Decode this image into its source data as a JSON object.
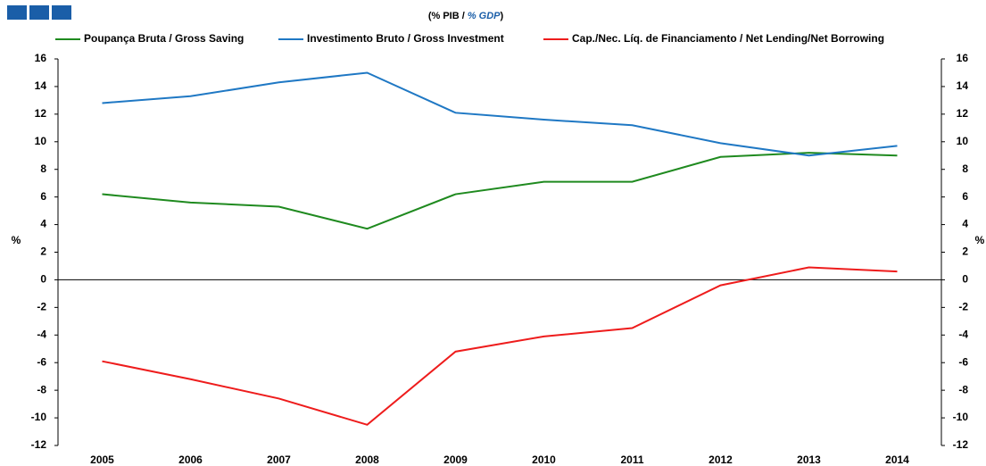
{
  "chart_data": {
    "type": "line",
    "title": [
      "(% PIB / ",
      "% GDP",
      ")"
    ],
    "y_label": "%",
    "y2_label": "%",
    "categories": [
      "2005",
      "2006",
      "2007",
      "2008",
      "2009",
      "2010",
      "2011",
      "2012",
      "2013",
      "2014"
    ],
    "series": [
      {
        "name": "Poupança Bruta / Gross Saving",
        "color": "#1f8a1f",
        "values": [
          6.2,
          5.6,
          5.3,
          3.7,
          6.2,
          7.1,
          7.1,
          8.9,
          9.2,
          9.0
        ]
      },
      {
        "name": "Investimento Bruto / Gross Investment",
        "color": "#1f78c4",
        "values": [
          12.8,
          13.3,
          14.3,
          15.0,
          12.1,
          11.6,
          11.2,
          9.9,
          9.0,
          9.7
        ]
      },
      {
        "name": "Cap./Nec. Líq. de Financiamento / Net Lending/Net Borrowing",
        "color": "#ee1c1c",
        "values": [
          -5.9,
          -7.2,
          -8.6,
          -10.5,
          -5.2,
          -4.1,
          -3.5,
          -0.4,
          0.9,
          0.6
        ]
      }
    ],
    "ylim": [
      -12,
      16
    ],
    "yticks": [
      -12,
      -10,
      -8,
      -6,
      -4,
      -2,
      0,
      2,
      4,
      6,
      8,
      10,
      12,
      14,
      16
    ],
    "y2lim": [
      -12,
      16
    ],
    "y2ticks": [
      -12,
      -10,
      -8,
      -6,
      -4,
      -2,
      0,
      2,
      4,
      6,
      8,
      10,
      12,
      14,
      16
    ],
    "grid": false
  }
}
